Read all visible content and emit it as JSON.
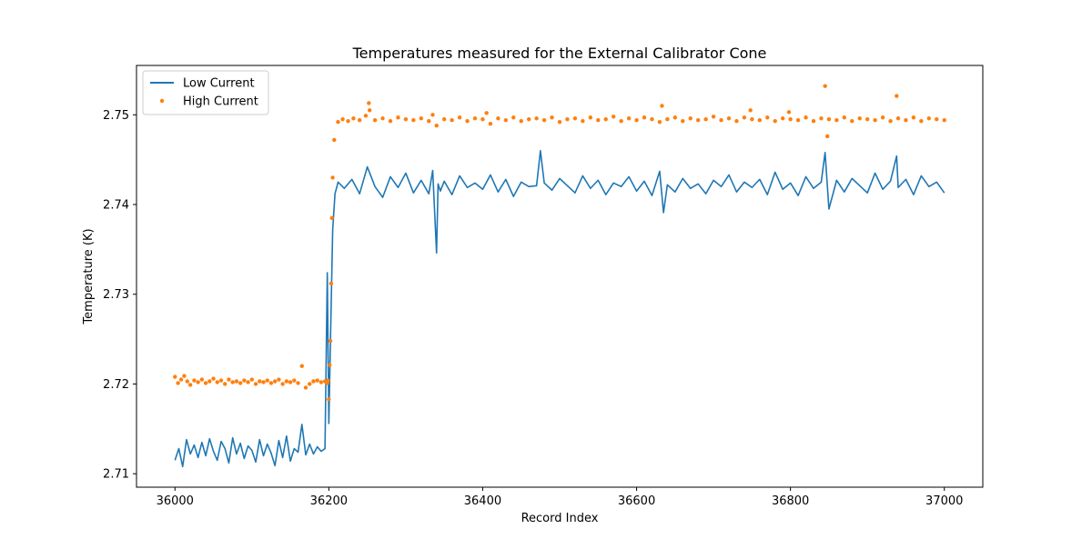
{
  "chart_data": {
    "type": "line",
    "title": "Temperatures measured for the External Calibrator Cone",
    "xlabel": "Record Index",
    "ylabel": "Temperature (K)",
    "xlim": [
      35950,
      37050
    ],
    "ylim": [
      2.7085,
      2.7555
    ],
    "xticks": [
      36000,
      36200,
      36400,
      36600,
      36800,
      37000
    ],
    "xtick_labels": [
      "36000",
      "36200",
      "36400",
      "36600",
      "36800",
      "37000"
    ],
    "yticks": [
      2.71,
      2.72,
      2.73,
      2.74,
      2.75
    ],
    "ytick_labels": [
      "2.71",
      "2.72",
      "2.73",
      "2.74",
      "2.75"
    ],
    "grid": false,
    "legend_position": "top-left",
    "series": [
      {
        "name": "Low Current",
        "style": "line",
        "color": "#1f77b4",
        "x": [
          36000,
          36005,
          36010,
          36015,
          36020,
          36025,
          36030,
          36035,
          36040,
          36045,
          36050,
          36055,
          36060,
          36065,
          36070,
          36075,
          36080,
          36085,
          36090,
          36095,
          36100,
          36105,
          36110,
          36115,
          36120,
          36125,
          36130,
          36135,
          36140,
          36145,
          36150,
          36155,
          36160,
          36165,
          36170,
          36175,
          36180,
          36185,
          36190,
          36195,
          36198,
          36200,
          36202,
          36205,
          36208,
          36212,
          36220,
          36230,
          36240,
          36250,
          36260,
          36270,
          36280,
          36290,
          36300,
          36310,
          36320,
          36330,
          36335,
          36340,
          36342,
          36345,
          36350,
          36360,
          36370,
          36380,
          36390,
          36400,
          36410,
          36420,
          36430,
          36440,
          36450,
          36460,
          36470,
          36475,
          36480,
          36490,
          36500,
          36510,
          36520,
          36530,
          36540,
          36550,
          36560,
          36570,
          36580,
          36590,
          36600,
          36610,
          36620,
          36630,
          36635,
          36640,
          36650,
          36660,
          36670,
          36680,
          36690,
          36700,
          36710,
          36720,
          36730,
          36740,
          36750,
          36760,
          36770,
          36780,
          36790,
          36800,
          36810,
          36820,
          36830,
          36840,
          36845,
          36850,
          36860,
          36870,
          36880,
          36890,
          36900,
          36910,
          36920,
          36930,
          36938,
          36940,
          36950,
          36960,
          36970,
          36980,
          36990,
          37000
        ],
        "y": [
          2.7115,
          2.7128,
          2.7108,
          2.7138,
          2.7122,
          2.7132,
          2.7118,
          2.7135,
          2.712,
          2.7139,
          2.7125,
          2.7115,
          2.7136,
          2.7128,
          2.7112,
          2.714,
          2.7122,
          2.7134,
          2.7117,
          2.7131,
          2.7126,
          2.7113,
          2.7138,
          2.712,
          2.7133,
          2.7123,
          2.7109,
          2.7137,
          2.7118,
          2.7142,
          2.7114,
          2.7128,
          2.7124,
          2.7155,
          2.7121,
          2.7133,
          2.7122,
          2.713,
          2.7125,
          2.7128,
          2.7324,
          2.7156,
          2.7243,
          2.7372,
          2.7412,
          2.7425,
          2.7418,
          2.7428,
          2.7412,
          2.7442,
          2.742,
          2.7408,
          2.7431,
          2.7419,
          2.7435,
          2.7413,
          2.7427,
          2.7412,
          2.7438,
          2.7346,
          2.7423,
          2.7415,
          2.7426,
          2.7411,
          2.7432,
          2.7419,
          2.7424,
          2.7417,
          2.7433,
          2.7414,
          2.7428,
          2.7409,
          2.7425,
          2.742,
          2.7421,
          2.746,
          2.7424,
          2.7416,
          2.7429,
          2.7421,
          2.7413,
          2.7432,
          2.7418,
          2.7427,
          2.7411,
          2.7424,
          2.742,
          2.7431,
          2.7415,
          2.7426,
          2.741,
          2.7437,
          2.7391,
          2.7422,
          2.7414,
          2.7429,
          2.7418,
          2.7423,
          2.7412,
          2.7427,
          2.742,
          2.7433,
          2.7414,
          2.7425,
          2.7419,
          2.7428,
          2.7411,
          2.7436,
          2.7417,
          2.7424,
          2.741,
          2.7431,
          2.7418,
          2.7425,
          2.7458,
          2.7395,
          2.7427,
          2.7414,
          2.7429,
          2.7421,
          2.7413,
          2.7435,
          2.7417,
          2.7426,
          2.7454,
          2.7419,
          2.7428,
          2.7411,
          2.7432,
          2.742,
          2.7425,
          2.7413
        ]
      },
      {
        "name": "High Current",
        "style": "scatter",
        "color": "#ff7f0e",
        "x": [
          36000,
          36004,
          36008,
          36012,
          36016,
          36020,
          36025,
          36030,
          36035,
          36040,
          36045,
          36050,
          36055,
          36060,
          36065,
          36070,
          36075,
          36080,
          36085,
          36090,
          36095,
          36100,
          36105,
          36110,
          36115,
          36120,
          36125,
          36130,
          36135,
          36140,
          36145,
          36150,
          36155,
          36160,
          36165,
          36170,
          36175,
          36180,
          36185,
          36190,
          36195,
          36198,
          36199,
          36200,
          36201,
          36202,
          36203,
          36204,
          36205,
          36207,
          36212,
          36218,
          36225,
          36232,
          36240,
          36248,
          36252,
          36253,
          36260,
          36270,
          36280,
          36290,
          36300,
          36310,
          36320,
          36330,
          36335,
          36340,
          36350,
          36360,
          36370,
          36380,
          36390,
          36400,
          36405,
          36410,
          36420,
          36430,
          36440,
          36450,
          36460,
          36470,
          36480,
          36490,
          36500,
          36510,
          36520,
          36530,
          36540,
          36550,
          36560,
          36570,
          36580,
          36590,
          36600,
          36610,
          36620,
          36630,
          36633,
          36640,
          36650,
          36660,
          36670,
          36680,
          36690,
          36700,
          36710,
          36720,
          36730,
          36740,
          36748,
          36750,
          36760,
          36770,
          36780,
          36790,
          36798,
          36800,
          36810,
          36820,
          36830,
          36840,
          36845,
          36848,
          36850,
          36860,
          36870,
          36880,
          36890,
          36900,
          36910,
          36920,
          36930,
          36938,
          36940,
          36950,
          36960,
          36970,
          36980,
          36990,
          37000
        ],
        "y": [
          2.7208,
          2.7201,
          2.7205,
          2.7209,
          2.7203,
          2.7199,
          2.7204,
          2.7202,
          2.7205,
          2.7201,
          2.7203,
          2.7206,
          2.7202,
          2.7204,
          2.72,
          2.7205,
          2.7202,
          2.7203,
          2.7201,
          2.7204,
          2.7202,
          2.7205,
          2.72,
          2.7203,
          2.7202,
          2.7204,
          2.7201,
          2.7203,
          2.7205,
          2.72,
          2.7203,
          2.7202,
          2.7204,
          2.7201,
          2.722,
          2.7196,
          2.72,
          2.7203,
          2.7204,
          2.7202,
          2.7203,
          2.7201,
          2.7204,
          2.7183,
          2.7221,
          2.7248,
          2.7312,
          2.7385,
          2.743,
          2.7472,
          2.7492,
          2.7495,
          2.7493,
          2.7496,
          2.7494,
          2.7499,
          2.7513,
          2.7505,
          2.7494,
          2.7496,
          2.7493,
          2.7497,
          2.7495,
          2.7494,
          2.7496,
          2.7493,
          2.75,
          2.7488,
          2.7495,
          2.7494,
          2.7497,
          2.7493,
          2.7496,
          2.7495,
          2.7502,
          2.749,
          2.7496,
          2.7494,
          2.7497,
          2.7493,
          2.7495,
          2.7496,
          2.7494,
          2.7497,
          2.7492,
          2.7495,
          2.7496,
          2.7493,
          2.7497,
          2.7494,
          2.7495,
          2.7498,
          2.7493,
          2.7496,
          2.7494,
          2.7497,
          2.7495,
          2.7492,
          2.751,
          2.7495,
          2.7497,
          2.7493,
          2.7496,
          2.7494,
          2.7495,
          2.7498,
          2.7494,
          2.7496,
          2.7493,
          2.7497,
          2.7505,
          2.7495,
          2.7494,
          2.7497,
          2.7493,
          2.7496,
          2.7503,
          2.7495,
          2.7494,
          2.7497,
          2.7493,
          2.7496,
          2.7532,
          2.7476,
          2.7495,
          2.7494,
          2.7497,
          2.7493,
          2.7496,
          2.7495,
          2.7494,
          2.7497,
          2.7493,
          2.7521,
          2.7496,
          2.7494,
          2.7497,
          2.7493,
          2.7496,
          2.7495,
          2.7494
        ]
      }
    ]
  }
}
